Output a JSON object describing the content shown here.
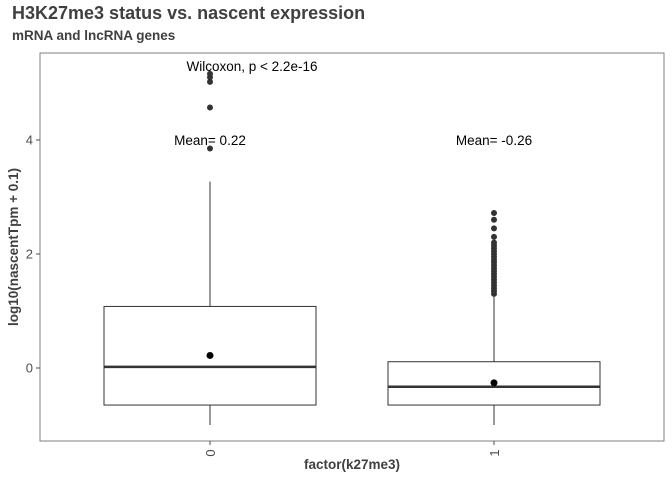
{
  "chart_data": {
    "type": "boxplot",
    "title": "H3K27me3 status vs. nascent expression",
    "subtitle": "mRNA and lncRNA genes",
    "xlabel": "factor(k27me3)",
    "ylabel": "log10(nascentTpm + 0.1)",
    "categories": [
      "0",
      "1"
    ],
    "ylim": [
      -1.25,
      5.5
    ],
    "yticks": [
      0,
      2,
      4
    ],
    "grid": false,
    "boxes": [
      {
        "category": "0",
        "min": -1.0,
        "q1": -0.65,
        "median": 0.02,
        "q3": 1.08,
        "max": 3.27,
        "mean": 0.22,
        "outliers": [
          3.85,
          4.57,
          5.02,
          5.1,
          5.16
        ]
      },
      {
        "category": "1",
        "min": -1.0,
        "q1": -0.65,
        "median": -0.33,
        "q3": 0.11,
        "max": 1.25,
        "mean": -0.26,
        "outliers": [
          1.3,
          1.35,
          1.4,
          1.45,
          1.5,
          1.55,
          1.6,
          1.65,
          1.7,
          1.75,
          1.8,
          1.85,
          1.9,
          1.95,
          2.0,
          2.05,
          2.1,
          2.15,
          2.2,
          2.3,
          2.45,
          2.6,
          2.72
        ]
      }
    ],
    "annotations": {
      "test": "Wilcoxon, p < 2.2e-16",
      "mean_labels": [
        "Mean= 0.22",
        "Mean= -0.26"
      ]
    }
  }
}
